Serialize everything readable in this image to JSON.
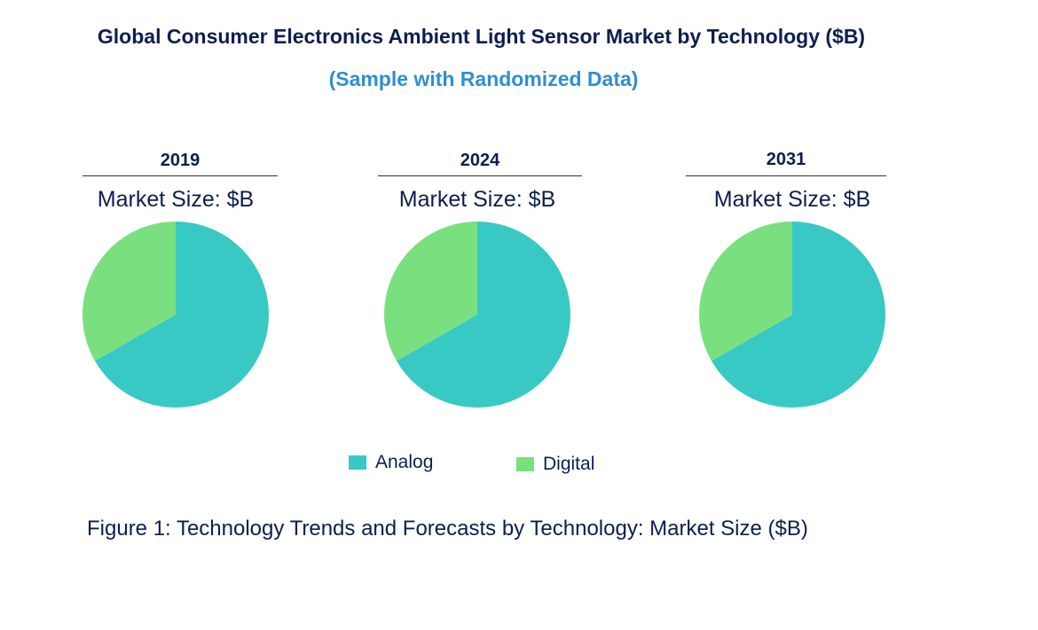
{
  "chart_data": {
    "type": "pie",
    "title": "Global Consumer Electronics Ambient Light Sensor Market by Technology ($B)",
    "subtitle": "(Sample with Randomized Data)",
    "categories": [
      "Analog",
      "Digital"
    ],
    "colors": {
      "Analog": "#38c9c4",
      "Digital": "#7ae07f"
    },
    "charts": [
      {
        "year": "2019",
        "label": "Market Size: $B",
        "values": [
          66.7,
          33.3
        ]
      },
      {
        "year": "2024",
        "label": "Market Size: $B",
        "values": [
          66.7,
          33.3
        ]
      },
      {
        "year": "2031",
        "label": "Market Size: $B",
        "values": [
          66.7,
          33.3
        ]
      }
    ],
    "legend": [
      "Analog",
      "Digital"
    ],
    "legend_position": "bottom",
    "caption": "Figure 1: Technology Trends and Forecasts by Technology: Market Size ($B)"
  }
}
